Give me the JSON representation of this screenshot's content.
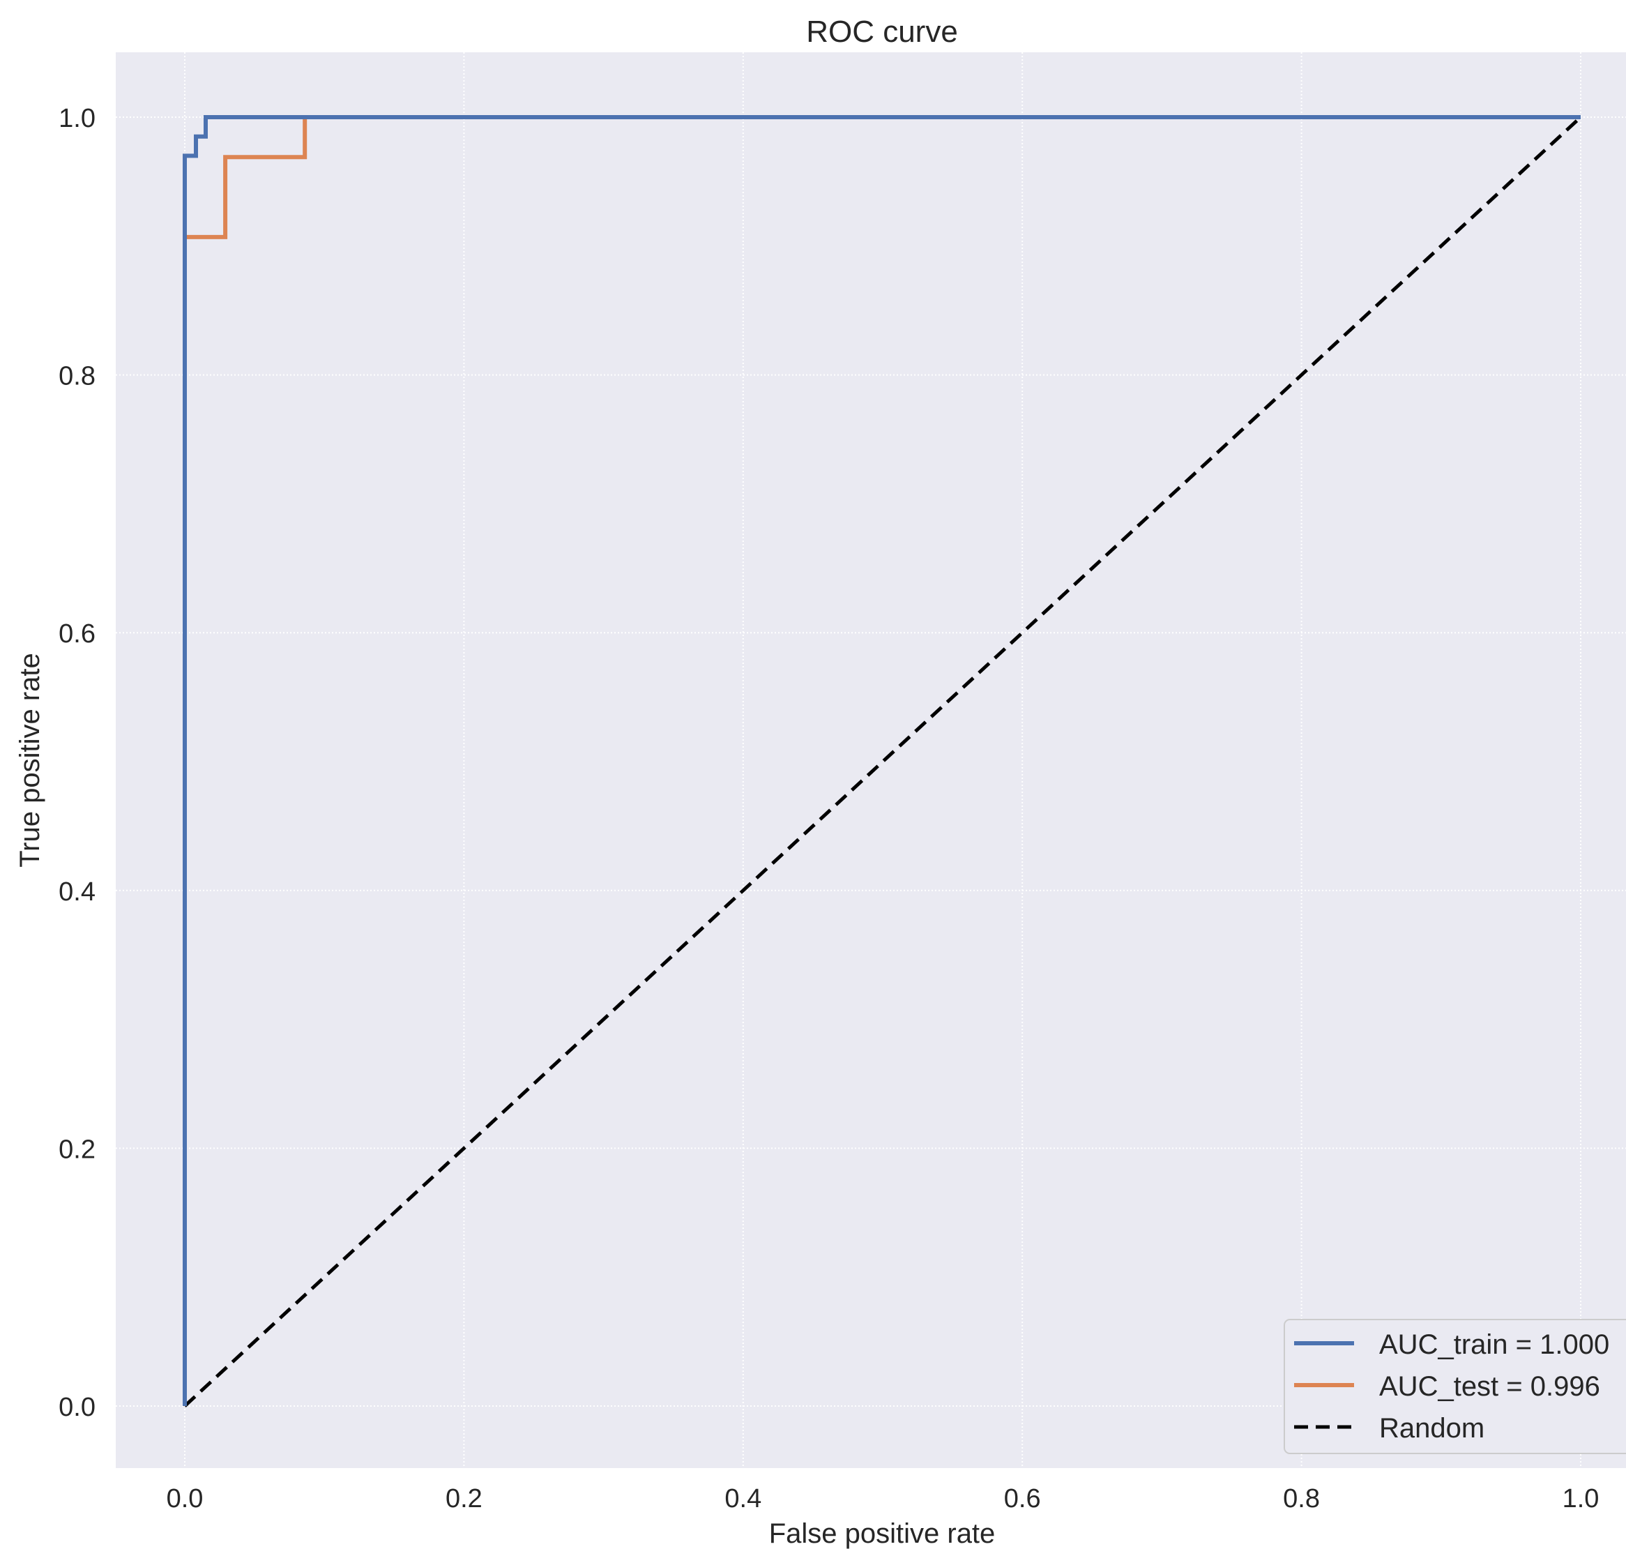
{
  "chart_data": {
    "type": "line",
    "title": "ROC curve",
    "xlabel": "False positive rate",
    "ylabel": "True positive rate",
    "xlim": [
      -0.05,
      1.05
    ],
    "ylim": [
      -0.05,
      1.05
    ],
    "xticks": [
      0.0,
      0.2,
      0.4,
      0.6,
      0.8,
      1.0
    ],
    "xtick_labels": [
      "0.0",
      "0.2",
      "0.4",
      "0.6",
      "0.8",
      "1.0"
    ],
    "yticks": [
      0.0,
      0.2,
      0.4,
      0.6,
      0.8,
      1.0
    ],
    "ytick_labels": [
      "0.0",
      "0.2",
      "0.4",
      "0.6",
      "0.8",
      "1.0"
    ],
    "grid": true,
    "legend_position": "bottom-right",
    "background_color": "#EAEAF2",
    "grid_color": "#FFFFFF",
    "series": [
      {
        "name": "AUC_train = 1.000",
        "color": "#4C72B0",
        "style": "solid",
        "x": [
          0.0,
          0.0,
          0.0,
          0.008,
          0.008,
          0.015,
          0.015,
          0.086,
          1.0
        ],
        "y": [
          0.0,
          0.907,
          0.97,
          0.97,
          0.985,
          0.985,
          1.0,
          1.0,
          1.0
        ]
      },
      {
        "name": "AUC_test = 0.996",
        "color": "#DD8452",
        "style": "solid",
        "x": [
          0.0,
          0.0,
          0.029,
          0.029,
          0.086,
          0.086,
          1.0
        ],
        "y": [
          0.0,
          0.907,
          0.907,
          0.969,
          0.969,
          1.0,
          1.0
        ]
      },
      {
        "name": "Random",
        "color": "#000000",
        "style": "dashed",
        "x": [
          0.0,
          1.0
        ],
        "y": [
          0.0,
          1.0
        ]
      }
    ]
  }
}
